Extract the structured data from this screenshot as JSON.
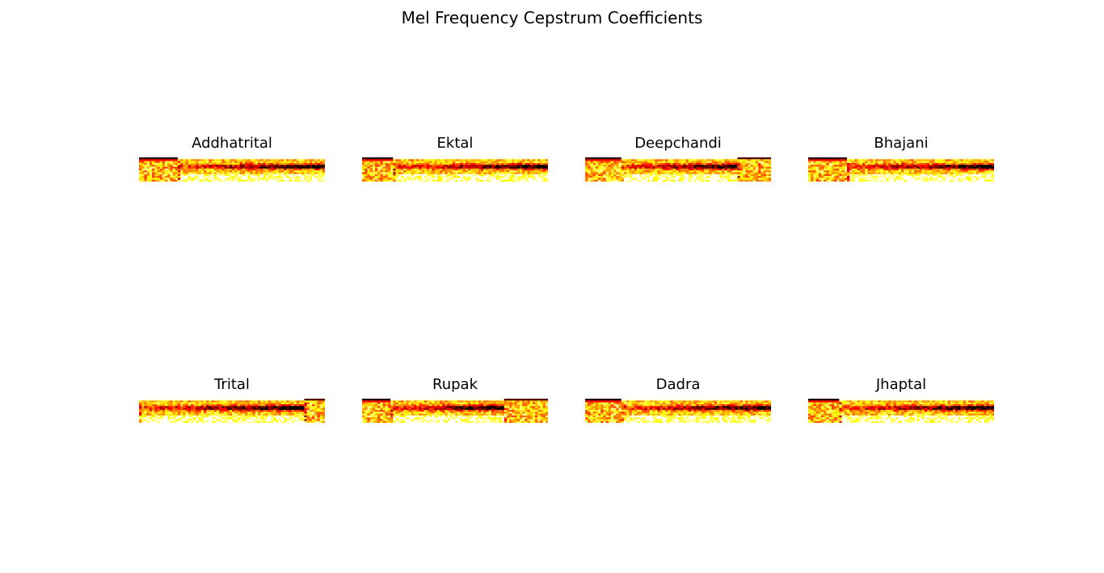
{
  "figure": {
    "title": "Mel Frequency Cepstrum Coefficients"
  },
  "chart_data": {
    "type": "heatmap",
    "colormap": "hot",
    "layout": "2 rows x 4 columns",
    "axes": "off",
    "panels": [
      {
        "title": "Addhatrital"
      },
      {
        "title": "Ektal"
      },
      {
        "title": "Deepchandi"
      },
      {
        "title": "Bhajani"
      },
      {
        "title": "Trital"
      },
      {
        "title": "Rupak"
      },
      {
        "title": "Dadra"
      },
      {
        "title": "Jhaptal"
      }
    ]
  }
}
